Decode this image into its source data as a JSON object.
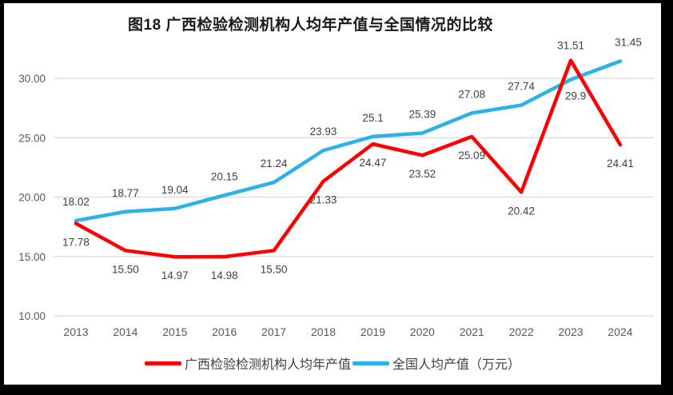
{
  "chart_data": {
    "type": "line",
    "title": "图18 广西检验检测机构人均年产值与全国情况的比较",
    "categories": [
      "2013",
      "2014",
      "2015",
      "2016",
      "2017",
      "2018",
      "2019",
      "2020",
      "2021",
      "2022",
      "2023",
      "2024"
    ],
    "series": [
      {
        "name": "广西检验检测机构人均年产值",
        "color": "#FF0000",
        "values": [
          17.78,
          15.5,
          14.97,
          14.98,
          15.5,
          21.33,
          24.47,
          23.52,
          25.09,
          20.42,
          31.51,
          24.41
        ],
        "labels": [
          "17.78",
          "15.50",
          "14.97",
          "14.98",
          "15.50",
          "21.33",
          "24.47",
          "23.52",
          "25.09",
          "20.42",
          "31.51",
          "24.41"
        ]
      },
      {
        "name": "全国人均产值（万元）",
        "color": "#2BB3E8",
        "values": [
          18.02,
          18.77,
          19.04,
          20.15,
          21.24,
          23.93,
          25.1,
          25.39,
          27.08,
          27.74,
          29.9,
          31.45
        ],
        "labels": [
          "18.02",
          "18.77",
          "19.04",
          "20.15",
          "21.24",
          "23.93",
          "25.1",
          "25.39",
          "27.08",
          "27.74",
          "29.9",
          "31.45"
        ]
      }
    ],
    "y_ticks": [
      "30.00",
      "25.00",
      "20.00",
      "15.00",
      "10.00"
    ],
    "ylim": [
      10,
      30
    ],
    "grid": true,
    "legend_position": "bottom",
    "colors": {
      "grid": "#D9D9D9",
      "axis_text": "#595959",
      "data_label": "#404040",
      "title_text": "#1A1A1A",
      "background": "#FFFFFF",
      "frame_border": "#000000"
    }
  }
}
